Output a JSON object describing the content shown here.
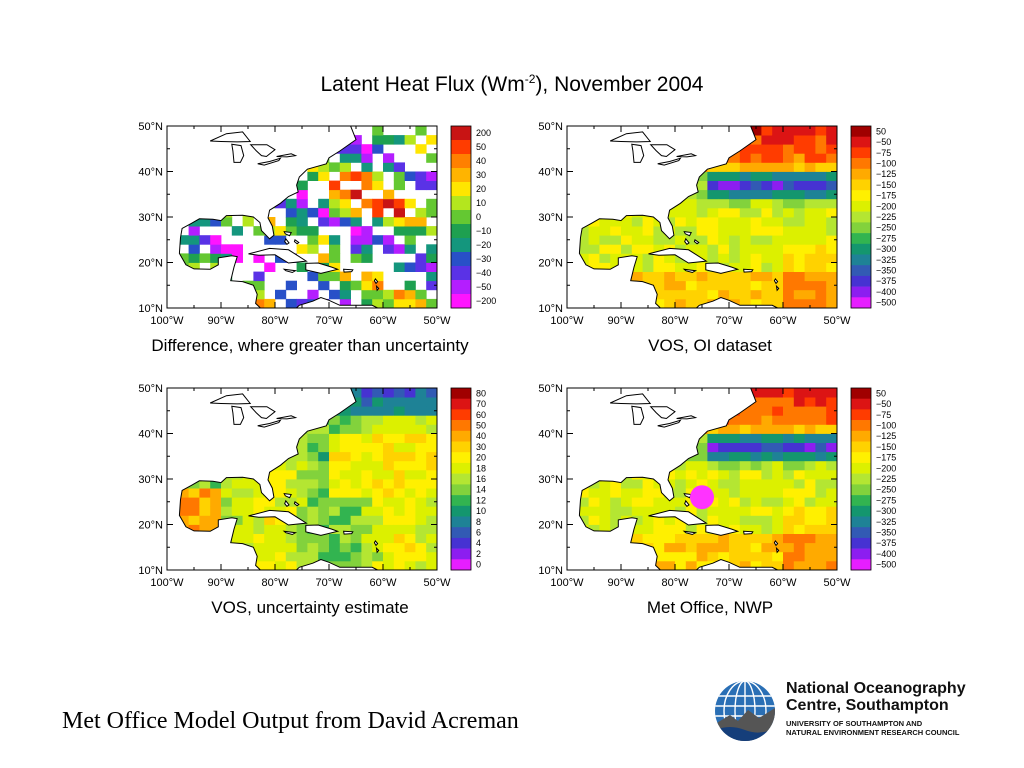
{
  "title": {
    "main": "Latent Heat Flux (Wm",
    "sup": "-2",
    "tail": "), November 2004"
  },
  "footer": "Met Office Model Output from David Acreman",
  "logo": {
    "name_line1": "National Oceanography",
    "name_line2": "Centre, Southampton",
    "sub_line1": "UNIVERSITY OF SOUTHAMPTON AND",
    "sub_line2": "NATURAL ENVIRONMENT RESEARCH COUNCIL"
  },
  "colors": {
    "coast": "#000000",
    "land": "#ffffff",
    "marker": "#ff33ff"
  },
  "chart_data": [
    {
      "type": "heatmap",
      "title": "Difference, where greater than uncertainty",
      "x_ticks": [
        "100°W",
        "90°W",
        "80°W",
        "70°W",
        "60°W",
        "50°W"
      ],
      "y_ticks": [
        "50°N",
        "40°N",
        "30°N",
        "20°N",
        "10°N"
      ],
      "xlim": [
        -100,
        -50
      ],
      "ylim": [
        10,
        50
      ],
      "colorbar": [
        "200",
        "50",
        "40",
        "30",
        "20",
        "10",
        "0",
        "−10",
        "−20",
        "−30",
        "−40",
        "−50",
        "−200"
      ],
      "colors": [
        "#c81414",
        "#ff3c00",
        "#ff8000",
        "#ffb400",
        "#ffe600",
        "#b4e61e",
        "#64c832",
        "#1ea050",
        "#14967d",
        "#2850c8",
        "#5a32e6",
        "#b41eff",
        "#ff14ff"
      ]
    },
    {
      "type": "heatmap",
      "title": "VOS, OI dataset",
      "x_ticks": [
        "100°W",
        "90°W",
        "80°W",
        "70°W",
        "60°W",
        "50°W"
      ],
      "y_ticks": [
        "50°N",
        "40°N",
        "30°N",
        "20°N",
        "10°N"
      ],
      "xlim": [
        -100,
        -50
      ],
      "ylim": [
        10,
        50
      ],
      "colorbar": [
        "50",
        "−50",
        "−75",
        "−100",
        "−125",
        "−150",
        "−175",
        "−200",
        "−225",
        "−250",
        "−275",
        "−300",
        "−325",
        "−350",
        "−375",
        "−400",
        "−500"
      ],
      "colors": [
        "#a00000",
        "#dc1414",
        "#ff3c00",
        "#ff7800",
        "#ffaa00",
        "#ffd200",
        "#fff000",
        "#dcf000",
        "#b4e632",
        "#82d23c",
        "#32b450",
        "#14966e",
        "#1e8296",
        "#325ab4",
        "#4632d2",
        "#8c1ef0",
        "#e61eff"
      ]
    },
    {
      "type": "heatmap",
      "title": "VOS, uncertainty estimate",
      "x_ticks": [
        "100°W",
        "90°W",
        "80°W",
        "70°W",
        "60°W",
        "50°W"
      ],
      "y_ticks": [
        "50°N",
        "40°N",
        "30°N",
        "20°N",
        "10°N"
      ],
      "xlim": [
        -100,
        -50
      ],
      "ylim": [
        10,
        50
      ],
      "colorbar": [
        "80",
        "70",
        "60",
        "50",
        "40",
        "30",
        "20",
        "18",
        "16",
        "14",
        "12",
        "10",
        "8",
        "6",
        "4",
        "2",
        "0"
      ],
      "colors": [
        "#a00000",
        "#dc1414",
        "#ff3c00",
        "#ff7800",
        "#ffaa00",
        "#ffd200",
        "#fff000",
        "#dcf000",
        "#b4e632",
        "#82d23c",
        "#32b450",
        "#14966e",
        "#1e8296",
        "#325ab4",
        "#4632d2",
        "#8c1ef0",
        "#e61eff"
      ]
    },
    {
      "type": "heatmap",
      "title": "Met Office, NWP",
      "x_ticks": [
        "100°W",
        "90°W",
        "80°W",
        "70°W",
        "60°W",
        "50°W"
      ],
      "y_ticks": [
        "50°N",
        "40°N",
        "30°N",
        "20°N",
        "10°N"
      ],
      "xlim": [
        -100,
        -50
      ],
      "ylim": [
        10,
        50
      ],
      "colorbar": [
        "50",
        "−50",
        "−75",
        "−100",
        "−125",
        "−150",
        "−175",
        "−200",
        "−225",
        "−250",
        "−275",
        "−300",
        "−325",
        "−350",
        "−375",
        "−400",
        "−500"
      ],
      "colors": [
        "#a00000",
        "#dc1414",
        "#ff3c00",
        "#ff7800",
        "#ffaa00",
        "#ffd200",
        "#fff000",
        "#dcf000",
        "#b4e632",
        "#82d23c",
        "#32b450",
        "#14966e",
        "#1e8296",
        "#325ab4",
        "#4632d2",
        "#8c1ef0",
        "#e61eff"
      ],
      "marker": {
        "lon": -75,
        "lat": 26
      }
    }
  ]
}
